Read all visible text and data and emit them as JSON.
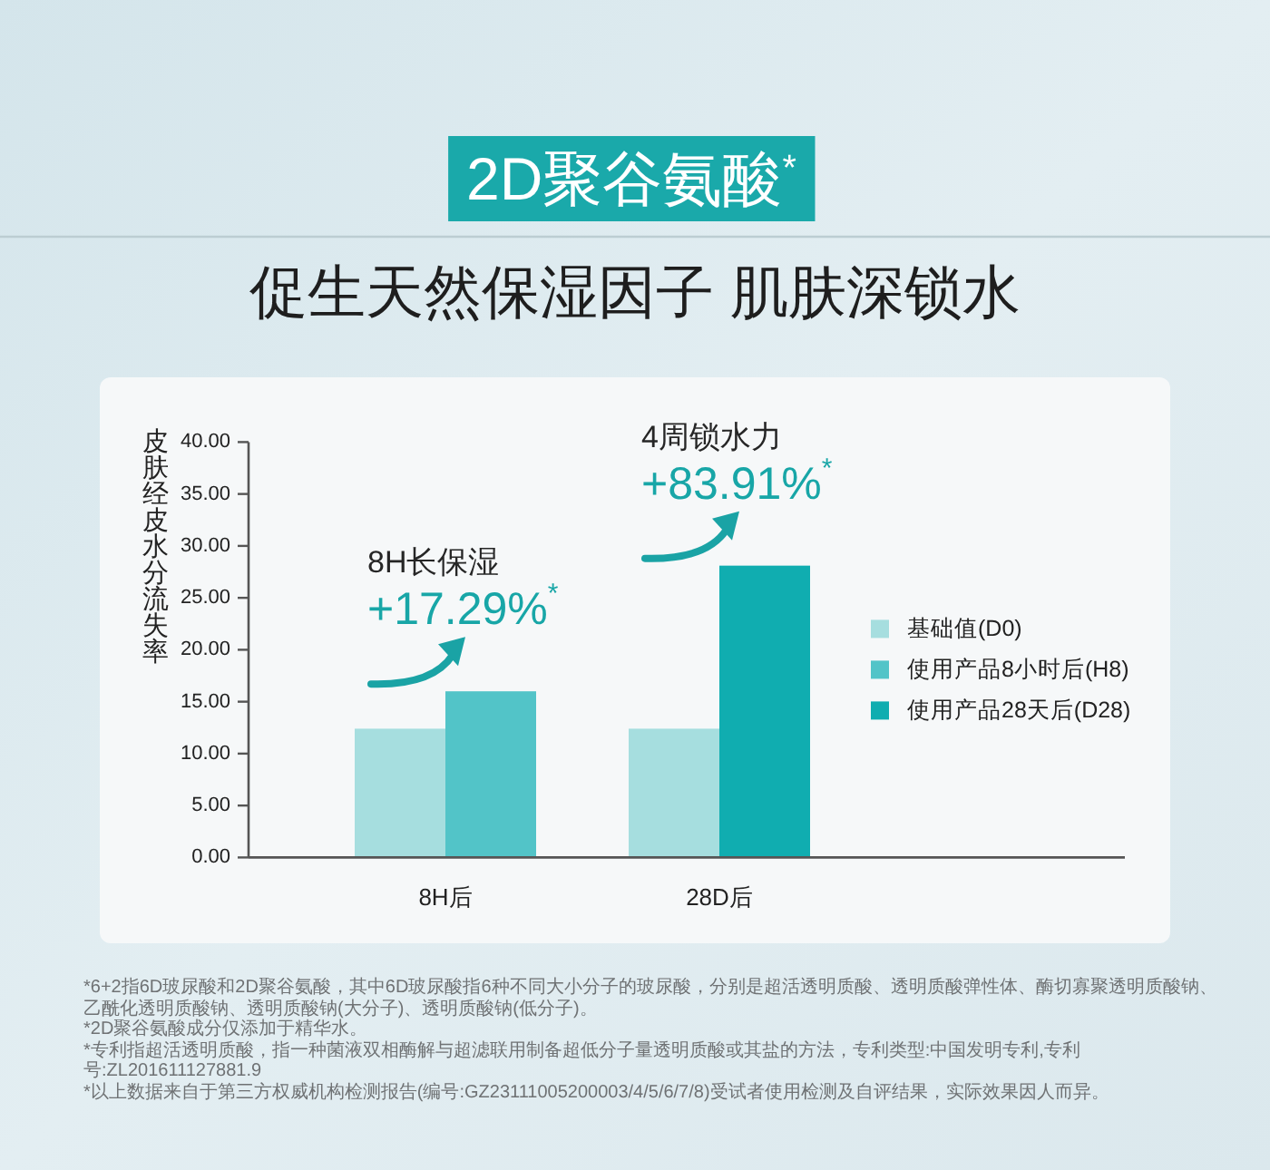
{
  "chart_data": {
    "type": "bar",
    "title": "2D聚谷氨酸$^{*}$",
    "subtitle": "促生天然保湿因子 肌肤深锁水",
    "ylabel": "皮肤经皮水分流失率",
    "categories": [
      "8H后",
      "28D后"
    ],
    "series": [
      {
        "name": "基础值(D0)",
        "color": "#a6dedf",
        "values": [
          12.4,
          12.4
        ]
      },
      {
        "name": "使用产品8小时后(H8)",
        "color": "#52c4c8",
        "values": [
          16.0,
          null
        ]
      },
      {
        "name": "使用产品28天后(D28)",
        "color": "#10adb0",
        "values": [
          null,
          28.1
        ]
      }
    ],
    "ylim": [
      0,
      40
    ],
    "yticks": [
      {
        "value": 0,
        "label": "0.00"
      },
      {
        "value": 5,
        "label": "5.00"
      },
      {
        "value": 10,
        "label": "10.00"
      },
      {
        "value": 15,
        "label": "15.00"
      },
      {
        "value": 20,
        "label": "20.00"
      },
      {
        "value": 25,
        "label": "25.00"
      },
      {
        "value": 30,
        "label": "30.00"
      },
      {
        "value": 35,
        "label": "35.00"
      },
      {
        "value": 40,
        "label": "40.00"
      }
    ],
    "legend": "right",
    "annotations": [
      "8H长保湿",
      "+17.29%$^{*}$",
      "4周锁水力",
      "+83.91%$^{*}$",
      "*6+2指6D玻尿酸和2D聚谷氨酸，其中6D玻尿酸指6种不同大小分子的玻尿酸，分别是超活透明质酸、透明质酸弹性体、酶切寡聚透明质酸钠、乙酰化透明质酸钠、透明质酸钠(大分子)、透明质酸钠(低分子)。",
      "*2D聚谷氨酸成分仅添加于精华水。",
      "*专利指超活透明质酸，指一种菌液双相酶解与超滤联用制备超低分子量透明质酸或其盐的方法，专利类型:中国发明专利,专利号:ZL201611127881.9",
      "*以上数据来自于第三方权威机构检测报告(编号:GZ23111005200003/4/5/6/7/8)受试者使用检测及自评结果，实际效果因人而异。"
    ]
  }
}
